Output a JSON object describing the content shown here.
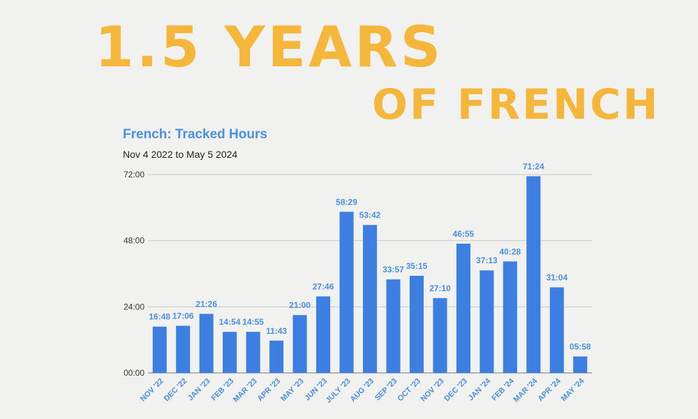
{
  "headline": {
    "line1": "1.5 YEARS",
    "line2": "OF FRENCH",
    "color": "#f5b63c"
  },
  "chart_data": {
    "type": "bar",
    "title": "French: Tracked Hours",
    "subtitle": "Nov 4 2022 to May 5 2024",
    "xlabel": "",
    "ylabel": "",
    "categories": [
      "NOV '22",
      "DEC '22",
      "JAN '23",
      "FEB '23",
      "MAR '23",
      "APR '23",
      "MAY '23",
      "JUN '23",
      "JULY '23",
      "AUG '23",
      "SEP '23",
      "OCT '23",
      "NOV '23",
      "DEC '23",
      "JAN '24",
      "FEB '24",
      "MAR '24",
      "APR '24",
      "MAY '24"
    ],
    "values": [
      16.8,
      17.1,
      21.433,
      14.9,
      14.917,
      11.717,
      21.0,
      27.767,
      58.483,
      53.7,
      33.95,
      35.25,
      27.167,
      46.917,
      37.217,
      40.467,
      71.4,
      31.067,
      5.967
    ],
    "value_labels": [
      "16:48",
      "17:06",
      "21:26",
      "14:54",
      "14:55",
      "11:43",
      "21:00",
      "27:46",
      "58:29",
      "53:42",
      "33:57",
      "35:15",
      "27:10",
      "46:55",
      "37:13",
      "40:28",
      "71:24",
      "31:04",
      "05:58"
    ],
    "y_ticks": [
      0,
      24,
      48,
      72
    ],
    "y_tick_labels": [
      "00:00",
      "24:00",
      "48:00",
      "72:00"
    ],
    "ylim": [
      0,
      72
    ],
    "grid": true,
    "bar_color": "#3d7fe0",
    "label_color": "#4a90e2"
  }
}
